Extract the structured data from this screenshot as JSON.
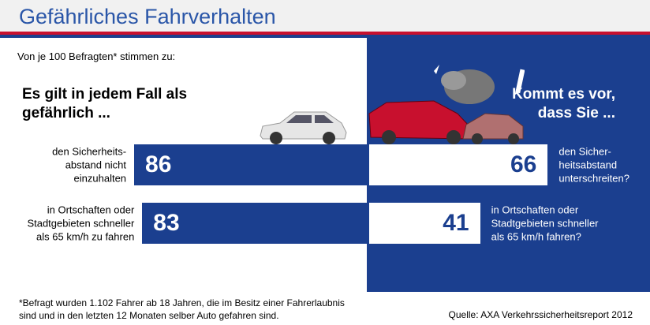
{
  "header": {
    "title": "Gefährliches Fahrverhalten"
  },
  "intro": "Von je 100 Befragten* stimmen zu:",
  "chart_data": [
    {
      "type": "bar",
      "title": "Es gilt in jedem Fall als\ngefährlich ...",
      "categories": [
        "den Sicherheits-\nabstand nicht\neinzuhalten",
        "in Ortschaften oder\nStadtgebieten schneller\nals 65 km/h zu fahren"
      ],
      "values": [
        86,
        83
      ],
      "color": "#1b3f8f",
      "label_color": "#ffffff",
      "bar_direction": "left",
      "xlim": [
        0,
        100
      ]
    },
    {
      "type": "bar",
      "title": "Kommt es vor,\ndass Sie ...",
      "categories": [
        "den Sicher-\nheitsabstand\nunterschreiten?",
        "in Ortschaften oder\nStadtgebieten schneller\nals 65 km/h fahren?"
      ],
      "values": [
        66,
        41
      ],
      "color": "#ffffff",
      "label_color": "#1b3f8f",
      "bar_direction": "right",
      "xlim": [
        0,
        100
      ]
    }
  ],
  "footnote": "*Befragt wurden 1.102 Fahrer ab 18 Jahren, die im Besitz einer Fahrerlaubnis\nsind und in den letzten 12 Monaten selber Auto gefahren sind.",
  "source": "Quelle: AXA Verkehrssicherheitsreport 2012"
}
